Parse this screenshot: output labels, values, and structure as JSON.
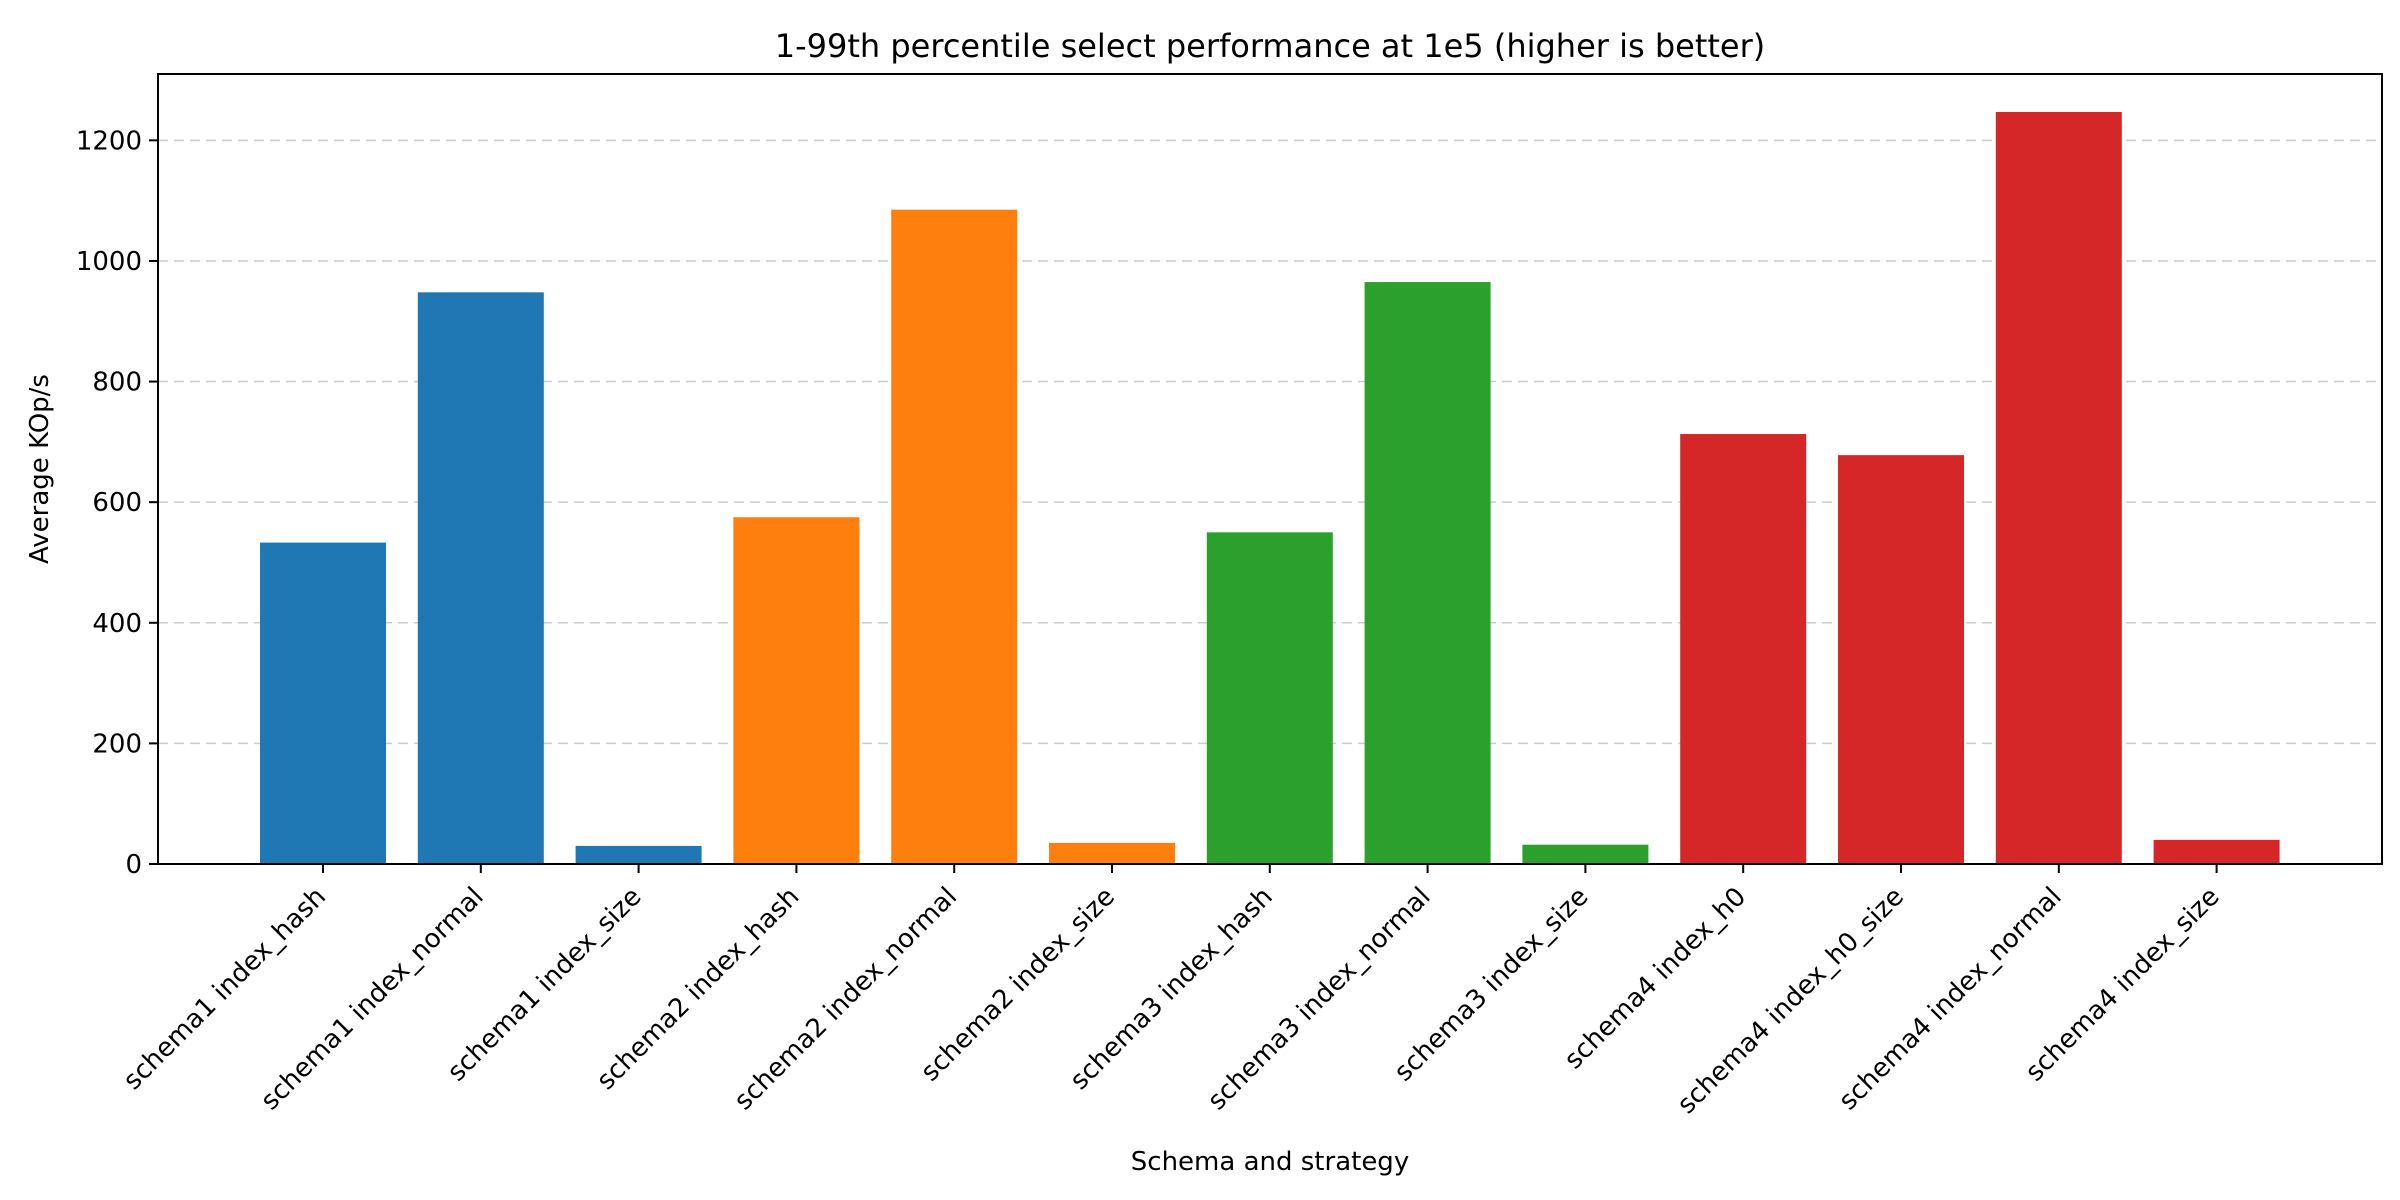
{
  "chart_data": {
    "type": "bar",
    "title": "1-99th percentile select performance at 1e5 (higher is better)",
    "xlabel": "Schema and strategy",
    "ylabel": "Average KOp/s",
    "ylim": [
      0,
      1310
    ],
    "yticks": [
      0,
      200,
      400,
      600,
      800,
      1000,
      1200
    ],
    "grid": "y-dashed",
    "categories": [
      "schema1 index_hash",
      "schema1 index_normal",
      "schema1 index_size",
      "schema2 index_hash",
      "schema2 index_normal",
      "schema2 index_size",
      "schema3 index_hash",
      "schema3 index_normal",
      "schema3 index_size",
      "schema4 index_h0",
      "schema4 index_h0_size",
      "schema4 index_normal",
      "schema4 index_size"
    ],
    "values": [
      533,
      948,
      30,
      575,
      1085,
      35,
      550,
      965,
      32,
      713,
      678,
      1247,
      40
    ],
    "colors": [
      "#1f77b4",
      "#1f77b4",
      "#1f77b4",
      "#ff7f0e",
      "#ff7f0e",
      "#ff7f0e",
      "#2ca02c",
      "#2ca02c",
      "#2ca02c",
      "#d62728",
      "#d62728",
      "#d62728",
      "#d62728"
    ]
  }
}
